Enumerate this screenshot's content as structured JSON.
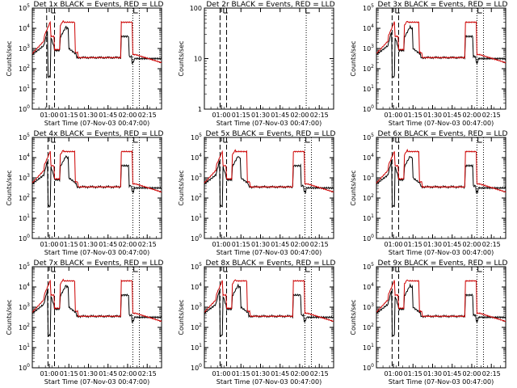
{
  "page": {
    "background": "#ffffff"
  },
  "chart_data": [
    {
      "type": "line",
      "title": "Det 1x BLACK = Events, RED = LLD",
      "xlabel": "Start Time (07-Nov-03 00:47:00)",
      "ylabel": "Counts/sec",
      "yscale": "log",
      "ylim": [
        1,
        100000
      ],
      "ytick_labels": [
        "10^0",
        "10^1",
        "10^2",
        "10^3",
        "10^4",
        "10^5"
      ],
      "xlim": [
        "00:47",
        "02:26"
      ],
      "xtick_labels": [
        "01:00",
        "01:15",
        "01:30",
        "01:45",
        "02:00",
        "02:15"
      ],
      "has_data": true,
      "dashed_vlines": [
        "00:58",
        "01:04"
      ],
      "dotted_vlines": [
        "02:04",
        "02:09"
      ],
      "top_markers": [
        "01:03",
        "02:06"
      ],
      "series": [
        {
          "name": "BLACK = Events",
          "color": "#000000"
        },
        {
          "name": "RED = LLD",
          "color": "#cc0000"
        }
      ]
    },
    {
      "type": "line",
      "title": "Det 2r BLACK = Events, RED = LLD",
      "xlabel": "Start Time (07-Nov-03 00:47:00)",
      "ylabel": "Counts/sec",
      "yscale": "log",
      "ylim": [
        1,
        100
      ],
      "ytick_labels": [
        "1",
        "10",
        "100"
      ],
      "xlim": [
        "00:47",
        "02:26"
      ],
      "xtick_labels": [
        "01:00",
        "01:15",
        "01:30",
        "01:45",
        "02:00",
        "02:15"
      ],
      "has_data": false,
      "dashed_vlines": [
        "00:59",
        "01:04"
      ],
      "dotted_vlines": [
        "02:05"
      ],
      "top_markers": [
        "01:03",
        "02:06"
      ],
      "series": []
    },
    {
      "type": "line",
      "title": "Det 3x BLACK = Events, RED = LLD",
      "xlabel": "Start Time (07-Nov-03 00:47:00)",
      "ylabel": "Counts/sec",
      "yscale": "log",
      "ylim": [
        1,
        100000
      ],
      "ytick_labels": [
        "10^0",
        "10^1",
        "10^2",
        "10^3",
        "10^4",
        "10^5"
      ],
      "xlim": [
        "00:47",
        "02:26"
      ],
      "xtick_labels": [
        "01:00",
        "01:15",
        "01:30",
        "01:45",
        "02:00",
        "02:15"
      ],
      "has_data": true,
      "dashed_vlines": [
        "00:59",
        "01:04"
      ],
      "dotted_vlines": [
        "02:04",
        "02:09"
      ],
      "top_markers": [
        "01:03",
        "02:06"
      ],
      "series": [
        {
          "name": "BLACK = Events",
          "color": "#000000"
        },
        {
          "name": "RED = LLD",
          "color": "#cc0000"
        }
      ]
    },
    {
      "type": "line",
      "title": "Det 4x BLACK = Events, RED = LLD",
      "xlabel": "Start Time (07-Nov-03 00:47:00)",
      "ylabel": "Counts/sec",
      "yscale": "log",
      "ylim": [
        1,
        100000
      ],
      "ytick_labels": [
        "10^0",
        "10^1",
        "10^2",
        "10^3",
        "10^4",
        "10^5"
      ],
      "xlim": [
        "00:47",
        "02:26"
      ],
      "xtick_labels": [
        "01:00",
        "01:15",
        "01:30",
        "01:45",
        "02:00",
        "02:15"
      ],
      "has_data": true,
      "dashed_vlines": [
        "00:59",
        "01:04"
      ],
      "dotted_vlines": [
        "02:04",
        "02:09"
      ],
      "top_markers": [
        "01:03",
        "02:06"
      ],
      "series": [
        {
          "name": "BLACK = Events",
          "color": "#000000"
        },
        {
          "name": "RED = LLD",
          "color": "#cc0000"
        }
      ]
    },
    {
      "type": "line",
      "title": "Det 5x BLACK = Events, RED = LLD",
      "xlabel": "Start Time (07-Nov-03 00:47:00)",
      "ylabel": "Counts/sec",
      "yscale": "log",
      "ylim": [
        1,
        100000
      ],
      "ytick_labels": [
        "10^0",
        "10^1",
        "10^2",
        "10^3",
        "10^4",
        "10^5"
      ],
      "xlim": [
        "00:47",
        "02:26"
      ],
      "xtick_labels": [
        "01:00",
        "01:15",
        "01:30",
        "01:45",
        "02:00",
        "02:15"
      ],
      "has_data": true,
      "dashed_vlines": [
        "00:59",
        "01:04"
      ],
      "dotted_vlines": [
        "02:04",
        "02:09"
      ],
      "top_markers": [
        "01:03",
        "02:06"
      ],
      "series": [
        {
          "name": "BLACK = Events",
          "color": "#000000"
        },
        {
          "name": "RED = LLD",
          "color": "#cc0000"
        }
      ]
    },
    {
      "type": "line",
      "title": "Det 6x BLACK = Events, RED = LLD",
      "xlabel": "Start Time (07-Nov-03 00:47:00)",
      "ylabel": "Counts/sec",
      "yscale": "log",
      "ylim": [
        1,
        100000
      ],
      "ytick_labels": [
        "10^0",
        "10^1",
        "10^2",
        "10^3",
        "10^4",
        "10^5"
      ],
      "xlim": [
        "00:47",
        "02:26"
      ],
      "xtick_labels": [
        "01:00",
        "01:15",
        "01:30",
        "01:45",
        "02:00",
        "02:15"
      ],
      "has_data": true,
      "dashed_vlines": [
        "00:59",
        "01:04"
      ],
      "dotted_vlines": [
        "02:04",
        "02:09"
      ],
      "top_markers": [
        "01:03",
        "02:06"
      ],
      "series": [
        {
          "name": "BLACK = Events",
          "color": "#000000"
        },
        {
          "name": "RED = LLD",
          "color": "#cc0000"
        }
      ]
    },
    {
      "type": "line",
      "title": "Det 7x BLACK = Events, RED = LLD",
      "xlabel": "Start Time (07-Nov-03 00:47:00)",
      "ylabel": "Counts/sec",
      "yscale": "log",
      "ylim": [
        1,
        100000
      ],
      "ytick_labels": [
        "10^0",
        "10^1",
        "10^2",
        "10^3",
        "10^4",
        "10^5"
      ],
      "xlim": [
        "00:47",
        "02:26"
      ],
      "xtick_labels": [
        "01:00",
        "01:15",
        "01:30",
        "01:45",
        "02:00",
        "02:15"
      ],
      "has_data": true,
      "dashed_vlines": [
        "00:59",
        "01:04"
      ],
      "dotted_vlines": [
        "02:04",
        "02:09"
      ],
      "top_markers": [
        "01:03",
        "02:06"
      ],
      "series": [
        {
          "name": "BLACK = Events",
          "color": "#000000"
        },
        {
          "name": "RED = LLD",
          "color": "#cc0000"
        }
      ]
    },
    {
      "type": "line",
      "title": "Det 8x BLACK = Events, RED = LLD",
      "xlabel": "Start Time (07-Nov-03 00:47:00)",
      "ylabel": "Counts/sec",
      "yscale": "log",
      "ylim": [
        1,
        100000
      ],
      "ytick_labels": [
        "10^0",
        "10^1",
        "10^2",
        "10^3",
        "10^4",
        "10^5"
      ],
      "xlim": [
        "00:47",
        "02:26"
      ],
      "xtick_labels": [
        "01:00",
        "01:15",
        "01:30",
        "01:45",
        "02:00",
        "02:15"
      ],
      "has_data": true,
      "dashed_vlines": [
        "00:59",
        "01:04"
      ],
      "dotted_vlines": [
        "02:04",
        "02:09"
      ],
      "top_markers": [
        "01:03",
        "02:06"
      ],
      "series": [
        {
          "name": "BLACK = Events",
          "color": "#000000"
        },
        {
          "name": "RED = LLD",
          "color": "#cc0000"
        }
      ]
    },
    {
      "type": "line",
      "title": "Det 9x BLACK = Events, RED = LLD",
      "xlabel": "Start Time (07-Nov-03 00:47:00)",
      "ylabel": "Counts/sec",
      "yscale": "log",
      "ylim": [
        1,
        100000
      ],
      "ytick_labels": [
        "10^0",
        "10^1",
        "10^2",
        "10^3",
        "10^4",
        "10^5"
      ],
      "xlim": [
        "00:47",
        "02:26"
      ],
      "xtick_labels": [
        "01:00",
        "01:15",
        "01:30",
        "01:45",
        "02:00",
        "02:15"
      ],
      "has_data": true,
      "dashed_vlines": [
        "00:59",
        "01:04"
      ],
      "dotted_vlines": [
        "02:04",
        "02:09"
      ],
      "top_markers": [
        "01:03",
        "02:06"
      ],
      "series": [
        {
          "name": "BLACK = Events",
          "color": "#000000"
        },
        {
          "name": "RED = LLD",
          "color": "#cc0000"
        }
      ]
    }
  ]
}
